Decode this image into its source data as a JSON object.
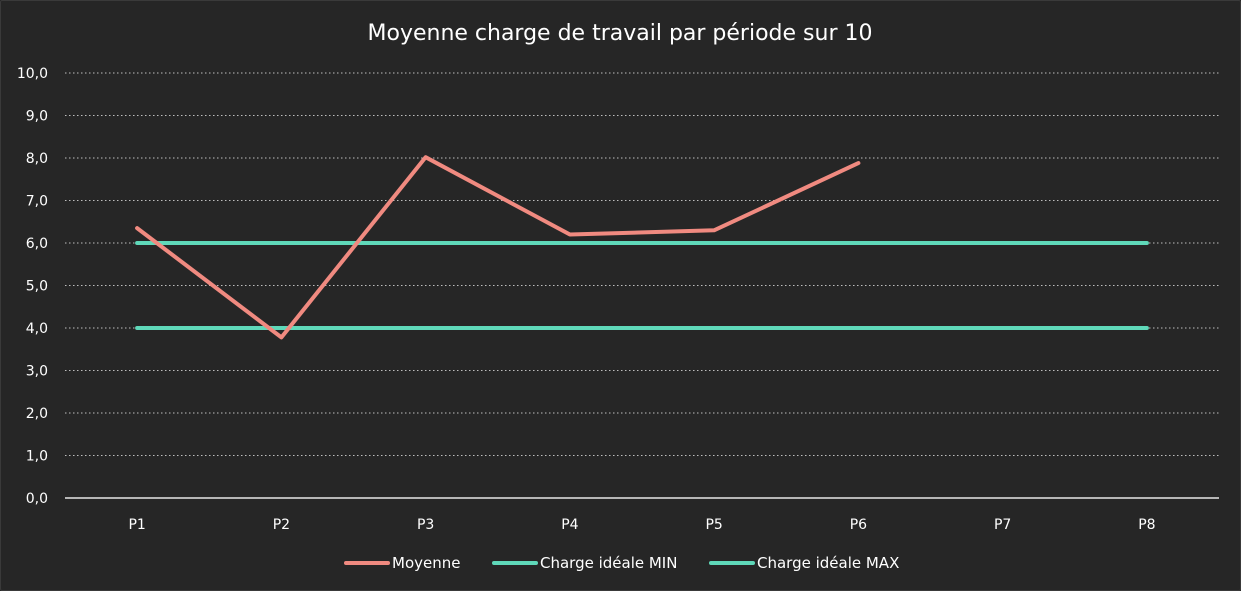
{
  "chart_data": {
    "type": "line",
    "title": "Moyenne charge de travail par période sur 10",
    "categories": [
      "P1",
      "P2",
      "P3",
      "P4",
      "P5",
      "P6",
      "P7",
      "P8"
    ],
    "ylim": [
      0,
      10
    ],
    "yticks": [
      "0,0",
      "1,0",
      "2,0",
      "3,0",
      "4,0",
      "5,0",
      "6,0",
      "7,0",
      "8,0",
      "9,0",
      "10,0"
    ],
    "grid": true,
    "legend_position": "bottom",
    "series": [
      {
        "name": "Moyenne",
        "color": "#f08a80",
        "values": [
          6.35,
          3.78,
          8.02,
          6.2,
          6.3,
          7.88,
          null,
          null
        ]
      },
      {
        "name": "Charge idéale MIN",
        "color": "#5fd8b9",
        "values": [
          4,
          4,
          4,
          4,
          4,
          4,
          4,
          4
        ]
      },
      {
        "name": "Charge idéale MAX",
        "color": "#5fd8b9",
        "values": [
          6,
          6,
          6,
          6,
          6,
          6,
          6,
          6
        ]
      }
    ]
  }
}
